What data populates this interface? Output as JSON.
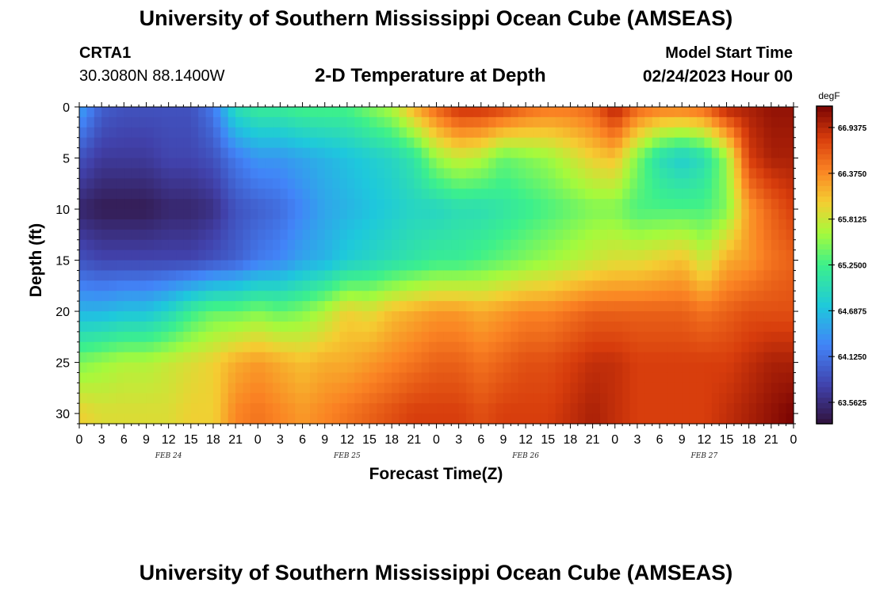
{
  "header": {
    "title": "University of Southern Mississippi Ocean Cube (AMSEAS)",
    "station": "CRTA1",
    "coordinates": "30.3080N  88.1400W",
    "subtitle": "2-D Temperature at Depth",
    "model_start_label": "Model Start Time",
    "model_start_value": "02/24/2023 Hour 00"
  },
  "footer": {
    "title": "University of Southern Mississippi Ocean Cube (AMSEAS)"
  },
  "chart_data": {
    "type": "heatmap",
    "title": "2-D Temperature at Depth",
    "xlabel": "Forecast Time(Z)",
    "ylabel": "Depth (ft)",
    "x_hours_range": [
      0,
      96
    ],
    "y_depth_range": [
      0,
      31
    ],
    "y_ticks": [
      0,
      5,
      10,
      15,
      20,
      25,
      30
    ],
    "x_tick_labels": [
      "0",
      "3",
      "6",
      "9",
      "12",
      "15",
      "18",
      "21",
      "0",
      "3",
      "6",
      "9",
      "12",
      "15",
      "18",
      "21",
      "0",
      "3",
      "6",
      "9",
      "12",
      "15",
      "18",
      "21",
      "0",
      "3",
      "6",
      "9",
      "12",
      "15",
      "18",
      "21",
      "0"
    ],
    "day_labels": [
      {
        "label": "FEB 24",
        "center_hour": 12
      },
      {
        "label": "FEB 25",
        "center_hour": 36
      },
      {
        "label": "FEB 26",
        "center_hour": 60
      },
      {
        "label": "FEB 27",
        "center_hour": 84
      }
    ],
    "colorbar": {
      "units": "degF",
      "range": [
        63.3,
        67.2
      ],
      "ticks": [
        "63.5625",
        "64.1250",
        "64.6875",
        "65.2500",
        "65.8125",
        "66.3750",
        "66.9375"
      ]
    },
    "grid_x_hours": [
      0,
      3,
      6,
      9,
      12,
      15,
      18,
      21,
      24,
      27,
      30,
      33,
      36,
      39,
      42,
      45,
      48,
      51,
      54,
      57,
      60,
      63,
      66,
      69,
      72,
      75,
      78,
      81,
      84,
      87,
      90,
      93,
      96
    ],
    "grid_depth_ft": [
      0,
      5,
      10,
      15,
      20,
      25,
      30
    ],
    "temperature_degF": [
      [
        64.5,
        64.0,
        63.9,
        63.9,
        63.9,
        63.9,
        64.2,
        65.0,
        65.2,
        65.2,
        65.3,
        65.3,
        65.3,
        65.5,
        65.7,
        66.2,
        66.6,
        66.9,
        66.9,
        66.8,
        66.6,
        66.5,
        66.5,
        66.6,
        67.0,
        66.6,
        66.5,
        66.5,
        66.6,
        67.0,
        67.0,
        67.1,
        67.1
      ],
      [
        63.9,
        63.7,
        63.7,
        63.7,
        63.8,
        63.8,
        63.9,
        64.2,
        64.4,
        64.4,
        64.5,
        64.6,
        64.7,
        64.8,
        64.9,
        65.1,
        65.6,
        65.8,
        65.7,
        65.4,
        65.5,
        65.6,
        65.8,
        66.0,
        66.1,
        65.5,
        65.0,
        64.8,
        65.0,
        65.6,
        66.8,
        67.0,
        67.0
      ],
      [
        63.5,
        63.4,
        63.4,
        63.4,
        63.5,
        63.5,
        63.6,
        63.9,
        64.0,
        64.1,
        64.3,
        64.5,
        64.6,
        64.7,
        64.8,
        64.9,
        64.9,
        65.0,
        65.0,
        65.1,
        65.2,
        65.3,
        65.4,
        65.5,
        65.5,
        65.3,
        65.3,
        65.3,
        65.3,
        65.5,
        66.3,
        66.6,
        66.8
      ],
      [
        63.9,
        63.8,
        63.8,
        63.8,
        63.8,
        63.8,
        63.9,
        64.0,
        64.2,
        64.3,
        64.5,
        64.6,
        64.8,
        64.9,
        65.0,
        65.1,
        65.2,
        65.2,
        65.3,
        65.4,
        65.5,
        65.6,
        65.7,
        65.8,
        65.9,
        65.9,
        66.0,
        66.1,
        65.8,
        66.2,
        66.3,
        66.5,
        66.6
      ],
      [
        64.6,
        64.6,
        64.7,
        64.7,
        64.9,
        65.2,
        65.4,
        65.4,
        65.5,
        65.4,
        65.5,
        65.7,
        66.0,
        65.9,
        66.1,
        66.2,
        66.3,
        66.3,
        66.2,
        66.3,
        66.4,
        66.4,
        66.5,
        66.6,
        66.6,
        66.6,
        66.6,
        66.6,
        66.5,
        66.6,
        66.7,
        66.7,
        66.7
      ],
      [
        65.5,
        65.6,
        65.7,
        65.7,
        65.8,
        65.9,
        66.0,
        66.2,
        66.3,
        66.2,
        66.1,
        66.2,
        66.2,
        66.3,
        66.4,
        66.5,
        66.6,
        66.6,
        66.5,
        66.6,
        66.7,
        66.7,
        66.8,
        66.9,
        66.9,
        66.8,
        66.8,
        66.8,
        66.8,
        66.8,
        66.9,
        67.0,
        67.0
      ],
      [
        66.0,
        65.9,
        65.9,
        65.9,
        65.9,
        66.0,
        66.0,
        66.4,
        66.5,
        66.4,
        66.3,
        66.4,
        66.5,
        66.6,
        66.7,
        66.8,
        66.8,
        66.8,
        66.7,
        66.8,
        66.8,
        66.8,
        66.9,
        67.0,
        66.9,
        66.8,
        66.8,
        66.8,
        66.8,
        66.9,
        67.0,
        67.1,
        67.2
      ]
    ]
  }
}
